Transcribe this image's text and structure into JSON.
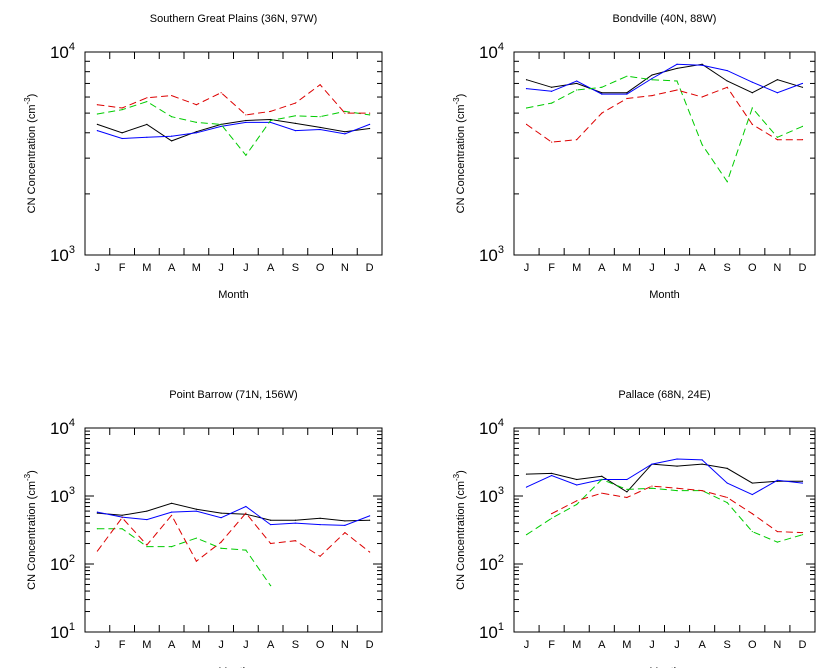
{
  "chart_data": [
    {
      "type": "line",
      "title": "Southern Great Plains (36N, 97W)",
      "xlabel": "Month",
      "ylabel": "CN Concentration (cm-3)",
      "yscale": "log",
      "ylim": [
        1000,
        10000
      ],
      "y_ticks": [
        {
          "base": "10",
          "exp": "3",
          "value": 1000
        },
        {
          "base": "10",
          "exp": "4",
          "value": 10000
        }
      ],
      "categories": [
        "J",
        "F",
        "M",
        "A",
        "M",
        "J",
        "J",
        "A",
        "S",
        "O",
        "N",
        "D"
      ],
      "series": [
        {
          "color": "#000000",
          "dash": "solid",
          "values": [
            4400,
            4000,
            4400,
            3650,
            4050,
            4400,
            4600,
            4650,
            4450,
            4250,
            4050,
            4200
          ]
        },
        {
          "color": "#0000ff",
          "dash": "solid",
          "values": [
            4100,
            3750,
            3800,
            3850,
            4000,
            4300,
            4500,
            4500,
            4100,
            4150,
            3950,
            4400
          ]
        },
        {
          "color": "#00cc00",
          "dash": "dashed",
          "values": [
            4950,
            5200,
            5700,
            4800,
            4500,
            4400,
            3100,
            4600,
            4850,
            4800,
            5100,
            4900
          ]
        },
        {
          "color": "#dd0000",
          "dash": "dashed",
          "values": [
            5500,
            5300,
            5950,
            6100,
            5500,
            6300,
            4900,
            5100,
            5600,
            6900,
            5000,
            5000
          ]
        }
      ]
    },
    {
      "type": "line",
      "title": "Bondville (40N, 88W)",
      "xlabel": "Month",
      "ylabel": "CN Concentration (cm-3)",
      "yscale": "log",
      "ylim": [
        1000,
        10000
      ],
      "y_ticks": [
        {
          "base": "10",
          "exp": "3",
          "value": 1000
        },
        {
          "base": "10",
          "exp": "4",
          "value": 10000
        }
      ],
      "categories": [
        "J",
        "F",
        "M",
        "A",
        "M",
        "J",
        "J",
        "A",
        "S",
        "O",
        "N",
        "D"
      ],
      "series": [
        {
          "color": "#000000",
          "dash": "solid",
          "values": [
            7300,
            6700,
            7000,
            6300,
            6300,
            7700,
            8300,
            8700,
            7200,
            6300,
            7300,
            6700
          ]
        },
        {
          "color": "#0000ff",
          "dash": "solid",
          "values": [
            6600,
            6400,
            7200,
            6200,
            6200,
            7400,
            8700,
            8600,
            8100,
            7100,
            6300,
            7000
          ]
        },
        {
          "color": "#00cc00",
          "dash": "dashed",
          "values": [
            5300,
            5600,
            6500,
            6700,
            7600,
            7300,
            7200,
            3500,
            2300,
            5300,
            3800,
            4300
          ]
        },
        {
          "color": "#dd0000",
          "dash": "dashed",
          "values": [
            4400,
            3600,
            3700,
            5000,
            5900,
            6100,
            6500,
            6000,
            6700,
            4400,
            3700,
            3700
          ]
        }
      ]
    },
    {
      "type": "line",
      "title": "Point Barrow (71N, 156W)",
      "xlabel": "Month",
      "ylabel": "CN Concentration (cm-3)",
      "yscale": "log",
      "ylim": [
        10,
        10000
      ],
      "y_ticks": [
        {
          "base": "10",
          "exp": "1",
          "value": 10
        },
        {
          "base": "10",
          "exp": "2",
          "value": 100
        },
        {
          "base": "10",
          "exp": "3",
          "value": 1000
        },
        {
          "base": "10",
          "exp": "4",
          "value": 10000
        }
      ],
      "categories": [
        "J",
        "F",
        "M",
        "A",
        "M",
        "J",
        "J",
        "A",
        "S",
        "O",
        "N",
        "D"
      ],
      "series": [
        {
          "color": "#000000",
          "dash": "solid",
          "values": [
            560,
            520,
            600,
            780,
            640,
            560,
            540,
            440,
            440,
            470,
            430,
            440
          ]
        },
        {
          "color": "#0000ff",
          "dash": "solid",
          "values": [
            580,
            490,
            450,
            580,
            600,
            480,
            700,
            380,
            400,
            380,
            370,
            510
          ]
        },
        {
          "color": "#00cc00",
          "dash": "dashed",
          "values": [
            330,
            330,
            180,
            180,
            240,
            170,
            160,
            48,
            null,
            null,
            null,
            null
          ]
        },
        {
          "color": "#dd0000",
          "dash": "dashed",
          "values": [
            155,
            480,
            190,
            520,
            110,
            210,
            560,
            200,
            220,
            130,
            290,
            150
          ]
        }
      ]
    },
    {
      "type": "line",
      "title": "Pallace (68N, 24E)",
      "xlabel": "Month",
      "ylabel": "CN Concentration (cm-3)",
      "yscale": "log",
      "ylim": [
        10,
        10000
      ],
      "y_ticks": [
        {
          "base": "10",
          "exp": "1",
          "value": 10
        },
        {
          "base": "10",
          "exp": "2",
          "value": 100
        },
        {
          "base": "10",
          "exp": "3",
          "value": 1000
        },
        {
          "base": "10",
          "exp": "4",
          "value": 10000
        }
      ],
      "categories": [
        "J",
        "F",
        "M",
        "A",
        "M",
        "J",
        "J",
        "A",
        "S",
        "O",
        "N",
        "D"
      ],
      "series": [
        {
          "color": "#000000",
          "dash": "solid",
          "values": [
            2100,
            2150,
            1750,
            1950,
            1150,
            2950,
            2750,
            2950,
            2550,
            1550,
            1650,
            1650
          ]
        },
        {
          "color": "#0000ff",
          "dash": "solid",
          "values": [
            1350,
            2000,
            1450,
            1750,
            1750,
            2950,
            3500,
            3400,
            1550,
            1050,
            1700,
            1550
          ]
        },
        {
          "color": "#00cc00",
          "dash": "dashed",
          "values": [
            270,
            470,
            750,
            1750,
            1250,
            1300,
            1200,
            1200,
            800,
            300,
            210,
            270
          ]
        },
        {
          "color": "#dd0000",
          "dash": "dashed",
          "values": [
            null,
            550,
            850,
            1100,
            950,
            1400,
            1300,
            1200,
            950,
            550,
            300,
            290
          ]
        }
      ]
    }
  ]
}
